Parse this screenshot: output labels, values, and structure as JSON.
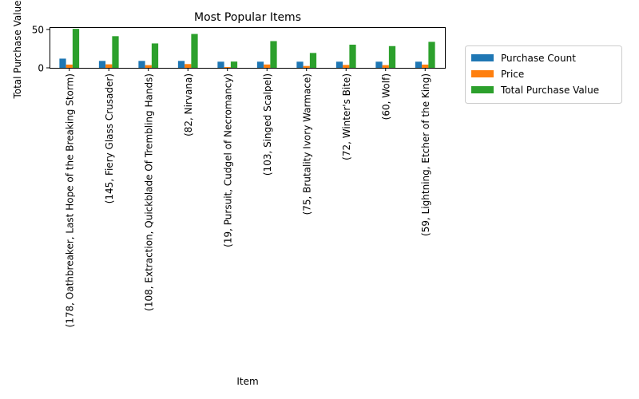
{
  "chart_data": {
    "type": "bar",
    "title": "Most Popular Items",
    "xlabel": "Item",
    "ylabel": "Total Purchase Value",
    "ylim": [
      0,
      53
    ],
    "yticks": [
      0,
      50
    ],
    "grid": false,
    "legend_position": "right",
    "categories": [
      "(178, Oathbreaker, Last Hope of the Breaking Storm)",
      "(145, Fiery Glass Crusader)",
      "(108, Extraction, Quickblade Of Trembling Hands)",
      "(82, Nirvana)",
      "(19, Pursuit, Cudgel of Necromancy)",
      "(103, Singed Scalpel)",
      "(75, Brutality Ivory Warmace)",
      "(72, Winter's Bite)",
      "(60, Wolf)",
      "(59, Lightning, Etcher of the King)"
    ],
    "series": [
      {
        "name": "Purchase Count",
        "color": "#1f77b4",
        "values": [
          12,
          9,
          9,
          9,
          8,
          8,
          8,
          8,
          8,
          8
        ]
      },
      {
        "name": "Price",
        "color": "#ff7f0e",
        "values": [
          4.23,
          4.58,
          3.53,
          4.9,
          1.02,
          4.35,
          2.42,
          3.77,
          3.54,
          4.23
        ]
      },
      {
        "name": "Total Purchase Value",
        "color": "#2ca02c",
        "values": [
          50.76,
          41.22,
          31.77,
          44.1,
          8.16,
          34.8,
          19.36,
          30.16,
          28.32,
          33.84
        ]
      }
    ]
  }
}
